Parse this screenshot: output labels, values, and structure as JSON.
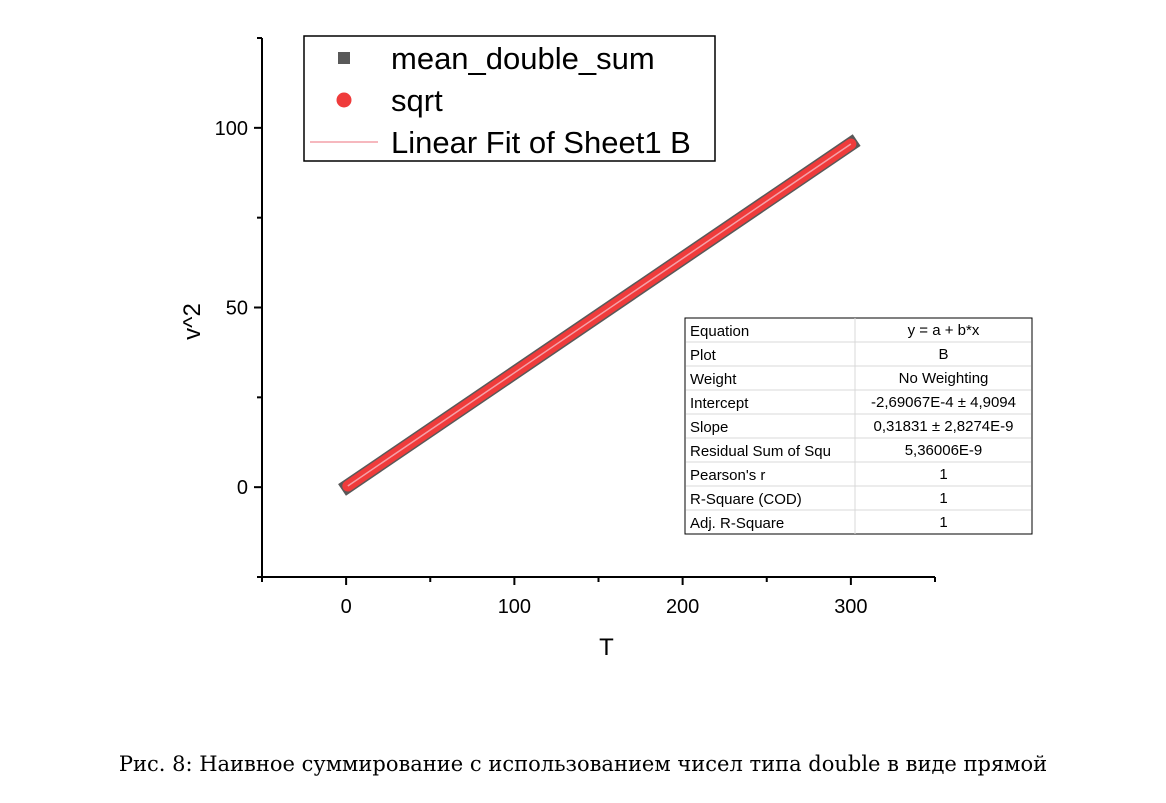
{
  "chart_data": {
    "type": "line",
    "title": "",
    "xlabel": "T",
    "ylabel": "v^2",
    "xlim": [
      -50,
      350
    ],
    "ylim": [
      -25,
      125
    ],
    "x_ticks": [
      0,
      100,
      200,
      300
    ],
    "y_ticks": [
      0,
      50,
      100
    ],
    "grid": false,
    "legend_position": "top-left",
    "series": [
      {
        "name": "mean_double_sum",
        "marker": "square",
        "color": "#595959",
        "x_range": [
          1,
          300
        ],
        "slope": 0.31831,
        "intercept": -0.000269067
      },
      {
        "name": "sqrt",
        "marker": "circle",
        "color": "#ef3b3b",
        "x_range": [
          1,
          300
        ],
        "slope": 0.31831,
        "intercept": -0.000269067
      },
      {
        "name": "Linear Fit of Sheet1 B",
        "marker": "line",
        "color": "#f4a0a8",
        "x_range": [
          1,
          300
        ],
        "slope": 0.31831,
        "intercept": -0.000269067
      }
    ],
    "stats_table": [
      [
        "Equation",
        "y = a + b*x"
      ],
      [
        "Plot",
        "B"
      ],
      [
        "Weight",
        "No Weighting"
      ],
      [
        "Intercept",
        "-2,69067E-4 ± 4,9094"
      ],
      [
        "Slope",
        "0,31831 ± 2,8274E-9"
      ],
      [
        "Residual Sum of Squ",
        "5,36006E-9"
      ],
      [
        "Pearson's r",
        "1"
      ],
      [
        "R-Square (COD)",
        "1"
      ],
      [
        "Adj. R-Square",
        "1"
      ]
    ]
  },
  "caption": "Рис. 8: Наивное суммирование с использованием чисел типа double в виде прямой"
}
